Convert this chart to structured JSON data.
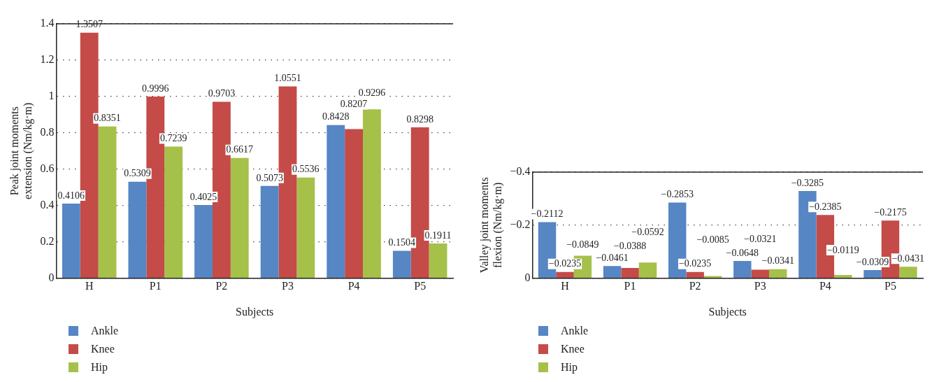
{
  "chart_data": [
    {
      "type": "bar",
      "xlabel": "Subjects",
      "ylabel": "Peak joint moments extension (Nm/kg·m)",
      "categories": [
        "H",
        "P1",
        "P2",
        "P3",
        "P4",
        "P5"
      ],
      "series": [
        {
          "name": "Ankle",
          "color": "#5686c3",
          "values": [
            0.4106,
            0.5309,
            0.4025,
            0.5073,
            0.8428,
            0.1504
          ]
        },
        {
          "name": "Knee",
          "color": "#c44b47",
          "values": [
            1.3507,
            0.9996,
            0.9703,
            1.0551,
            0.8207,
            0.8298
          ]
        },
        {
          "name": "Hip",
          "color": "#a5c14a",
          "values": [
            0.8351,
            0.7239,
            0.6617,
            0.5536,
            0.9296,
            0.1911
          ]
        }
      ],
      "ylim": [
        0,
        1.4
      ],
      "yticks": [
        0,
        0.2,
        0.4,
        0.6,
        0.8,
        1,
        1.2,
        1.4
      ],
      "grid": "y",
      "legend": "bottom",
      "data_labels": true
    },
    {
      "type": "bar",
      "xlabel": "Subjects",
      "ylabel": "Valley joint moments flexion (Nm/kg·m)",
      "categories": [
        "H",
        "P1",
        "P2",
        "P3",
        "P4",
        "P5"
      ],
      "series": [
        {
          "name": "Ankle",
          "color": "#5686c3",
          "values": [
            -0.2112,
            -0.0461,
            -0.2853,
            -0.0648,
            -0.3285,
            -0.0309
          ]
        },
        {
          "name": "Knee",
          "color": "#c44b47",
          "values": [
            -0.0235,
            -0.0388,
            -0.0235,
            -0.0321,
            -0.2385,
            -0.2175
          ]
        },
        {
          "name": "Hip",
          "color": "#a5c14a",
          "values": [
            -0.0849,
            -0.0592,
            -0.0085,
            -0.0341,
            -0.0119,
            -0.0431
          ]
        }
      ],
      "ylim": [
        0,
        -0.4
      ],
      "yticks": [
        0,
        {
          "value": -0.2,
          "label": "−0.2"
        },
        {
          "value": -0.4,
          "label": "−0.4"
        }
      ],
      "grid": "y",
      "legend": "bottom",
      "data_labels": true
    }
  ]
}
